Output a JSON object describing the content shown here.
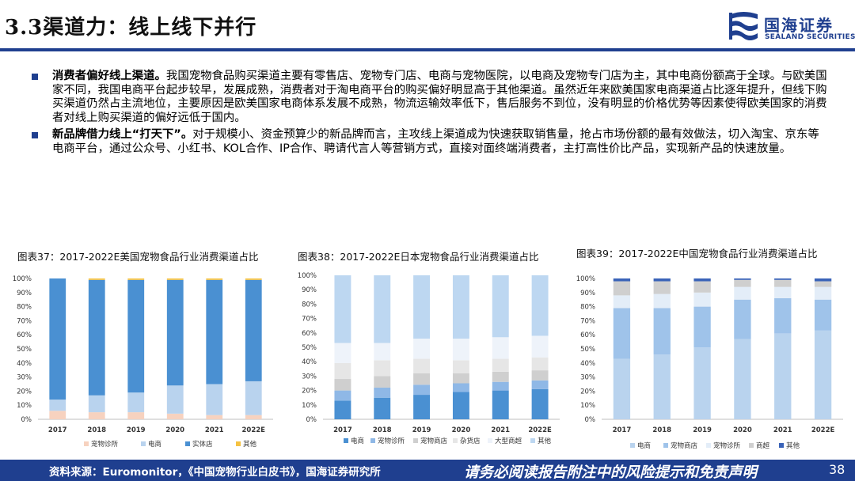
{
  "header": {
    "title": "3.3渠道力：线上线下并行",
    "logo_name": "国海证券",
    "logo_sub": "SEALAND SECURITIES"
  },
  "bullets": [
    {
      "bold": "消费者偏好线上渠道。",
      "text": "我国宠物食品购买渠道主要有零售店、宠物专门店、电商与宠物医院，以电商及宠物专门店为主，其中电商份额高于全球。与欧美国家不同，我国电商平台起步较早，发展成熟，消费者对于淘电商平台的购买偏好明显高于其他渠道。虽然近年来欧美国家电商渠道占比逐年提升，但线下购买渠道仍然占主流地位，主要原因是欧美国家电商体系发展不成熟，物流运输效率低下，售后服务不到位，没有明显的价格优势等因素使得欧美国家的消费者对线上购买渠道的偏好远低于国内。"
    },
    {
      "bold": "新品牌借力线上“打天下”。",
      "text": "对于规模小、资金预算少的新品牌而言，主攻线上渠道成为快速获取销售量，抢占市场份额的最有效做法，切入淘宝、京东等电商平台，通过公众号、小红书、KOL合作、IP合作、聘请代言人等营销方式，直接对面终端消费者，主打高性价比产品，实现新产品的快速放量。"
    }
  ],
  "chart_data": [
    {
      "type": "bar",
      "stacked": true,
      "title": "图表37：2017-2022E美国宠物食品行业消费渠道占比",
      "categories": [
        "2017",
        "2018",
        "2019",
        "2020",
        "2021",
        "2022E"
      ],
      "y_ticks": [
        "0%",
        "10%",
        "20%",
        "30%",
        "40%",
        "50%",
        "60%",
        "70%",
        "80%",
        "90%",
        "100%"
      ],
      "ylim": [
        0,
        100
      ],
      "legend_position": "bottom",
      "series": [
        {
          "name": "宠物诊所",
          "color": "#f7d2bf",
          "values": [
            6,
            5,
            5,
            4,
            3,
            3
          ]
        },
        {
          "name": "电商",
          "color": "#b9d3ee",
          "values": [
            8,
            12,
            14,
            20,
            22,
            24
          ]
        },
        {
          "name": "实体店",
          "color": "#4a90d2",
          "values": [
            86,
            82,
            80,
            75,
            74,
            72
          ]
        },
        {
          "name": "其他",
          "color": "#f5c242",
          "values": [
            0,
            1,
            1,
            1,
            1,
            1
          ]
        }
      ]
    },
    {
      "type": "bar",
      "stacked": true,
      "title": "图表38：2017-2022E日本宠物食品行业消费渠道占比",
      "categories": [
        "2017",
        "2018",
        "2019",
        "2020",
        "2021",
        "2022E"
      ],
      "y_ticks": [
        "0%",
        "10%",
        "20%",
        "30%",
        "40%",
        "50%",
        "60%",
        "70%",
        "80%",
        "90%",
        "100%"
      ],
      "ylim": [
        0,
        100
      ],
      "legend_position": "bottom",
      "series": [
        {
          "name": "电商",
          "color": "#4a90d2",
          "values": [
            13,
            15,
            17,
            19,
            20,
            21
          ]
        },
        {
          "name": "宠物诊所",
          "color": "#8fb8e6",
          "values": [
            7,
            7,
            7,
            6,
            6,
            6
          ]
        },
        {
          "name": "宠物商店",
          "color": "#cfcfcf",
          "values": [
            8,
            8,
            8,
            7,
            7,
            7
          ]
        },
        {
          "name": "杂货店",
          "color": "#e6e6e6",
          "values": [
            11,
            11,
            10,
            9,
            9,
            9
          ]
        },
        {
          "name": "大型商超",
          "color": "#eef3fa",
          "values": [
            14,
            12,
            14,
            15,
            15,
            15
          ]
        },
        {
          "name": "其他",
          "color": "#bdd7f1",
          "values": [
            47,
            47,
            44,
            44,
            43,
            42
          ]
        }
      ]
    },
    {
      "type": "bar",
      "stacked": true,
      "title": "图表39：2017-2022E中国宠物食品行业消费渠道占比",
      "categories": [
        "2017",
        "2018",
        "2019",
        "2020",
        "2021",
        "2022E"
      ],
      "y_ticks": [
        "0%",
        "10%",
        "20%",
        "30%",
        "40%",
        "50%",
        "60%",
        "70%",
        "80%",
        "90%",
        "100%"
      ],
      "ylim": [
        0,
        100
      ],
      "legend_position": "bottom",
      "series": [
        {
          "name": "电商",
          "color": "#b9d3ee",
          "values": [
            43,
            46,
            51,
            57,
            61,
            63
          ]
        },
        {
          "name": "宠物商店",
          "color": "#9fc3ea",
          "values": [
            36,
            33,
            29,
            28,
            25,
            22
          ]
        },
        {
          "name": "宠物诊所",
          "color": "#e3edf8",
          "values": [
            9,
            10,
            10,
            9,
            8,
            9
          ]
        },
        {
          "name": "商超",
          "color": "#cfcfcf",
          "values": [
            10,
            9,
            8,
            5,
            5,
            4
          ]
        },
        {
          "name": "其他",
          "color": "#3a63b8",
          "values": [
            2,
            2,
            2,
            1,
            1,
            2
          ]
        }
      ]
    }
  ],
  "footer": {
    "source": "资料来源：Euromonitor，《中国宠物行业白皮书》，国海证券研究所",
    "disclaimer": "请务必阅读报告附注中的风险提示和免责声明",
    "page": "38"
  }
}
